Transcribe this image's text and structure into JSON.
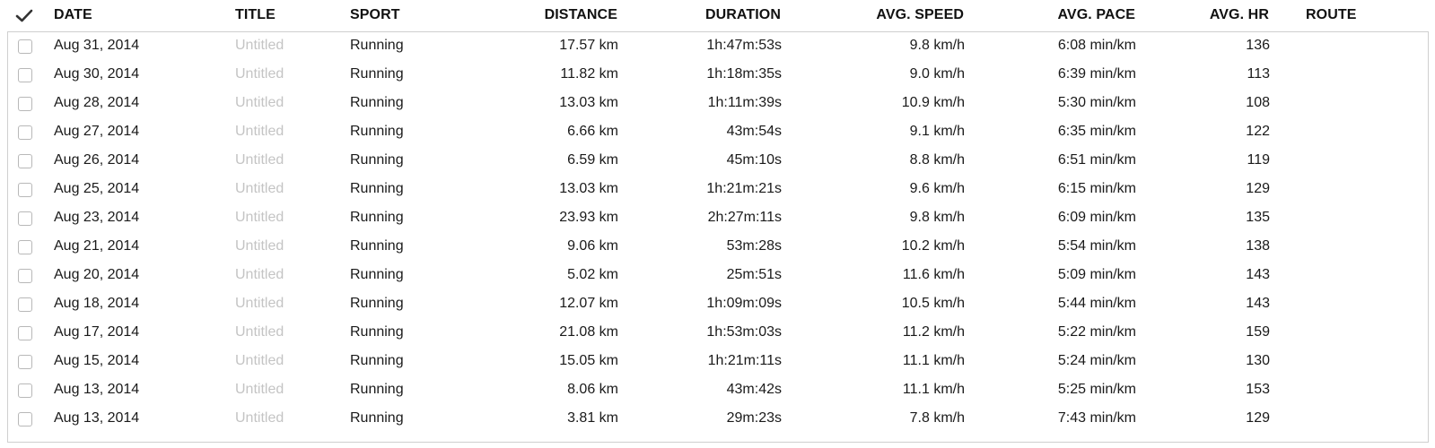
{
  "header": {
    "date": "DATE",
    "title": "TITLE",
    "sport": "SPORT",
    "distance": "DISTANCE",
    "duration": "DURATION",
    "avg_speed": "AVG. SPEED",
    "avg_pace": "AVG. PACE",
    "avg_hr": "AVG. HR",
    "route": "ROUTE"
  },
  "rows": [
    {
      "date": "Aug 31, 2014",
      "title": "Untitled",
      "sport": "Running",
      "distance": "17.57 km",
      "duration": "1h:47m:53s",
      "speed": "9.8 km/h",
      "pace": "6:08 min/km",
      "hr": "136",
      "route": ""
    },
    {
      "date": "Aug 30, 2014",
      "title": "Untitled",
      "sport": "Running",
      "distance": "11.82 km",
      "duration": "1h:18m:35s",
      "speed": "9.0 km/h",
      "pace": "6:39 min/km",
      "hr": "113",
      "route": ""
    },
    {
      "date": "Aug 28, 2014",
      "title": "Untitled",
      "sport": "Running",
      "distance": "13.03 km",
      "duration": "1h:11m:39s",
      "speed": "10.9 km/h",
      "pace": "5:30 min/km",
      "hr": "108",
      "route": ""
    },
    {
      "date": "Aug 27, 2014",
      "title": "Untitled",
      "sport": "Running",
      "distance": "6.66 km",
      "duration": "43m:54s",
      "speed": "9.1 km/h",
      "pace": "6:35 min/km",
      "hr": "122",
      "route": ""
    },
    {
      "date": "Aug 26, 2014",
      "title": "Untitled",
      "sport": "Running",
      "distance": "6.59 km",
      "duration": "45m:10s",
      "speed": "8.8 km/h",
      "pace": "6:51 min/km",
      "hr": "119",
      "route": ""
    },
    {
      "date": "Aug 25, 2014",
      "title": "Untitled",
      "sport": "Running",
      "distance": "13.03 km",
      "duration": "1h:21m:21s",
      "speed": "9.6 km/h",
      "pace": "6:15 min/km",
      "hr": "129",
      "route": ""
    },
    {
      "date": "Aug 23, 2014",
      "title": "Untitled",
      "sport": "Running",
      "distance": "23.93 km",
      "duration": "2h:27m:11s",
      "speed": "9.8 km/h",
      "pace": "6:09 min/km",
      "hr": "135",
      "route": ""
    },
    {
      "date": "Aug 21, 2014",
      "title": "Untitled",
      "sport": "Running",
      "distance": "9.06 km",
      "duration": "53m:28s",
      "speed": "10.2 km/h",
      "pace": "5:54 min/km",
      "hr": "138",
      "route": ""
    },
    {
      "date": "Aug 20, 2014",
      "title": "Untitled",
      "sport": "Running",
      "distance": "5.02 km",
      "duration": "25m:51s",
      "speed": "11.6 km/h",
      "pace": "5:09 min/km",
      "hr": "143",
      "route": ""
    },
    {
      "date": "Aug 18, 2014",
      "title": "Untitled",
      "sport": "Running",
      "distance": "12.07 km",
      "duration": "1h:09m:09s",
      "speed": "10.5 km/h",
      "pace": "5:44 min/km",
      "hr": "143",
      "route": ""
    },
    {
      "date": "Aug 17, 2014",
      "title": "Untitled",
      "sport": "Running",
      "distance": "21.08 km",
      "duration": "1h:53m:03s",
      "speed": "11.2 km/h",
      "pace": "5:22 min/km",
      "hr": "159",
      "route": ""
    },
    {
      "date": "Aug 15, 2014",
      "title": "Untitled",
      "sport": "Running",
      "distance": "15.05 km",
      "duration": "1h:21m:11s",
      "speed": "11.1 km/h",
      "pace": "5:24 min/km",
      "hr": "130",
      "route": ""
    },
    {
      "date": "Aug 13, 2014",
      "title": "Untitled",
      "sport": "Running",
      "distance": "8.06 km",
      "duration": "43m:42s",
      "speed": "11.1 km/h",
      "pace": "5:25 min/km",
      "hr": "153",
      "route": ""
    },
    {
      "date": "Aug 13, 2014",
      "title": "Untitled",
      "sport": "Running",
      "distance": "3.81 km",
      "duration": "29m:23s",
      "speed": "7.8 km/h",
      "pace": "7:43 min/km",
      "hr": "129",
      "route": ""
    }
  ],
  "icons": {
    "select_all": "checkmark-icon",
    "row_select": "checkbox"
  },
  "colors": {
    "title_placeholder": "#c4c4c4",
    "border": "#cfcfcf",
    "text": "#1a1a1a"
  }
}
